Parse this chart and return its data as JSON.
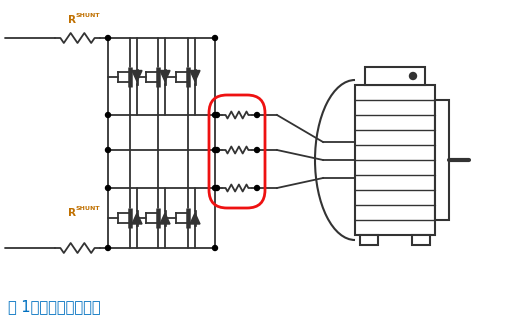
{
  "bg_color": "#ffffff",
  "line_color": "#333333",
  "red_color": "#ee1111",
  "blue_color": "#0070c0",
  "orange_color": "#c07000",
  "label_text": "图 1：直列式电流检测",
  "r_shunt_label": "R",
  "r_shunt_sub": "SHUNT",
  "figsize": [
    5.22,
    3.22
  ],
  "dpi": 100
}
